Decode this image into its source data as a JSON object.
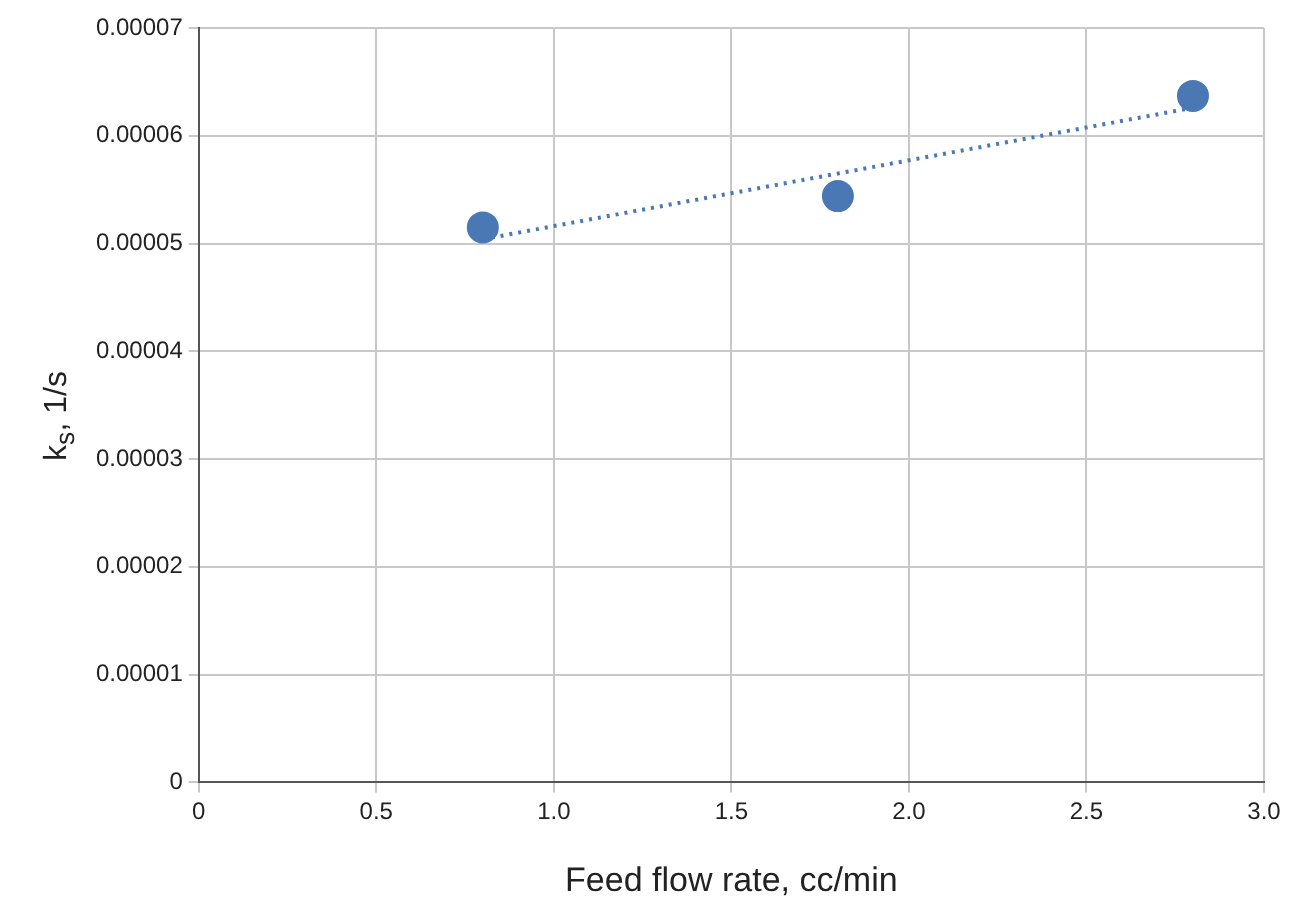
{
  "chart_data": {
    "type": "scatter",
    "xlabel": "Feed flow rate, cc/min",
    "ylabel": "k$_{s}$, 1/s",
    "x": [
      0.8,
      1.8,
      2.8
    ],
    "series": [
      {
        "type": "scatter",
        "color": "#4a78b4",
        "values": [
          5.15e-05,
          5.44e-05,
          6.37e-05
        ],
        "marker": "circle"
      },
      {
        "type": "line",
        "color": "#4a78b4",
        "x": [
          0.8,
          2.8
        ],
        "values": [
          5.04e-05,
          6.26e-05
        ],
        "marker": "none",
        "line_style": "dotted"
      }
    ],
    "xlim": [
      0,
      3
    ],
    "xticks": [
      0,
      0.5,
      {
        "value": 1,
        "label": "1.0"
      },
      1.5,
      {
        "value": 2,
        "label": "2.0"
      },
      2.5,
      {
        "value": 3,
        "label": "3.0"
      }
    ],
    "ylim": [
      0,
      7e-05
    ],
    "yticks": [
      0,
      {
        "value": 1e-05,
        "label": "0.00001"
      },
      {
        "value": 2e-05,
        "label": "0.00002"
      },
      {
        "value": 3e-05,
        "label": "0.00003"
      },
      {
        "value": 4e-05,
        "label": "0.00004"
      },
      {
        "value": 5e-05,
        "label": "0.00005"
      },
      {
        "value": 6e-05,
        "label": "0.00006"
      },
      {
        "value": 7e-05,
        "label": "0.00007"
      }
    ],
    "grid": true,
    "legend": false
  }
}
